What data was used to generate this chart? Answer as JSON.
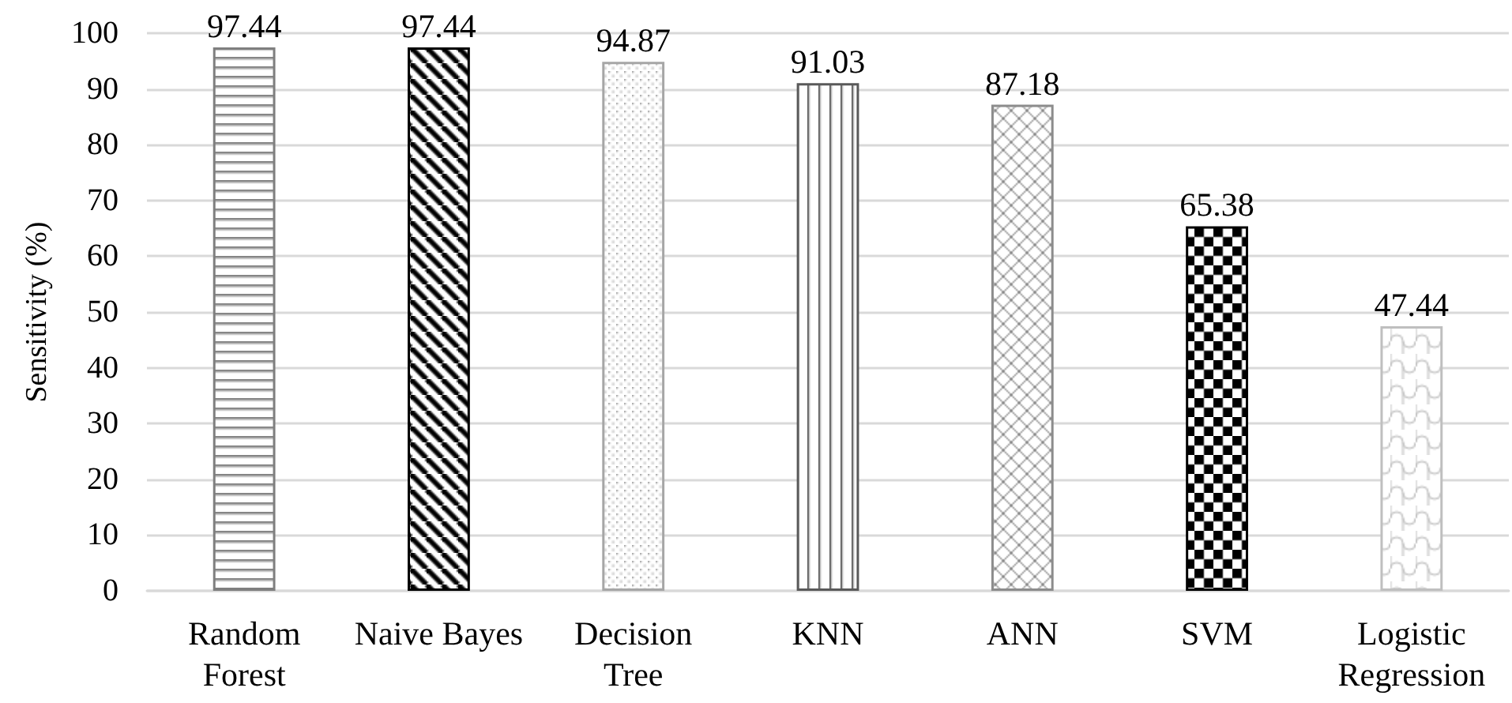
{
  "chart_data": {
    "type": "bar",
    "ylabel": "Sensitivity (%)",
    "categories": [
      "Random\nForest",
      "Naive Bayes",
      "Decision\nTree",
      "KNN",
      "ANN",
      "SVM",
      "Logistic\nRegression"
    ],
    "values": [
      97.44,
      97.44,
      94.87,
      91.03,
      87.18,
      65.38,
      47.44
    ],
    "colors": [
      "#7f7f7f",
      "#000000",
      "#a6a6a6",
      "#595959",
      "#8c8c8c",
      "#000000",
      "#bfbfbf"
    ],
    "ylim": [
      0,
      100
    ],
    "yticks": [
      0,
      10,
      20,
      30,
      40,
      50,
      60,
      70,
      80,
      90,
      100
    ],
    "grid": "y",
    "data_labels": true
  }
}
